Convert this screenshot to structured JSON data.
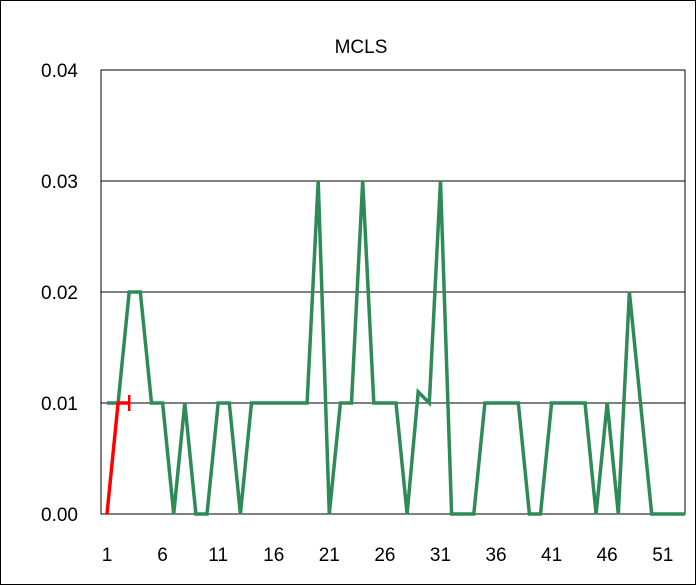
{
  "chart_data": {
    "type": "line",
    "title": "MCLS",
    "xlabel": "",
    "ylabel": "",
    "ylim": [
      0,
      0.04
    ],
    "xlim": [
      1,
      53
    ],
    "y_ticks": [
      "0.00",
      "0.01",
      "0.02",
      "0.03",
      "0.04"
    ],
    "y_tick_values": [
      0,
      0.01,
      0.02,
      0.03,
      0.04
    ],
    "x_ticks": [
      "1",
      "6",
      "11",
      "16",
      "21",
      "26",
      "31",
      "36",
      "41",
      "46",
      "51"
    ],
    "x_tick_values": [
      1,
      6,
      11,
      16,
      21,
      26,
      31,
      36,
      41,
      46,
      51
    ],
    "grid": "horizontal",
    "legend": "none",
    "series": [
      {
        "color": "#2e8b57",
        "x": [
          1,
          2,
          3,
          4,
          5,
          6,
          7,
          8,
          9,
          10,
          11,
          12,
          13,
          14,
          15,
          16,
          17,
          18,
          19,
          20,
          21,
          22,
          23,
          24,
          25,
          26,
          27,
          28,
          29,
          30,
          31,
          32,
          33,
          34,
          35,
          36,
          37,
          38,
          39,
          40,
          41,
          42,
          43,
          44,
          45,
          46,
          47,
          48,
          49,
          50,
          51,
          52,
          53
        ],
        "values": [
          0.01,
          0.01,
          0.02,
          0.02,
          0.01,
          0.01,
          0,
          0.01,
          0,
          0,
          0.01,
          0.01,
          0,
          0.01,
          0.01,
          0.01,
          0.01,
          0.01,
          0.01,
          0.03,
          0,
          0.01,
          0.01,
          0.03,
          0.01,
          0.01,
          0.01,
          0,
          0.011,
          0.01,
          0.03,
          0,
          0,
          0,
          0.01,
          0.01,
          0.01,
          0.01,
          0,
          0,
          0.01,
          0.01,
          0.01,
          0.01,
          0,
          0.01,
          0,
          0.02,
          0.01,
          0,
          0,
          0,
          0
        ]
      },
      {
        "color": "#ff0000",
        "x": [
          1,
          2,
          3
        ],
        "values": [
          0,
          0.01,
          0.01
        ]
      }
    ]
  },
  "colors": {
    "gridline": "#000000",
    "axis": "#000000",
    "background": "#ffffff"
  }
}
